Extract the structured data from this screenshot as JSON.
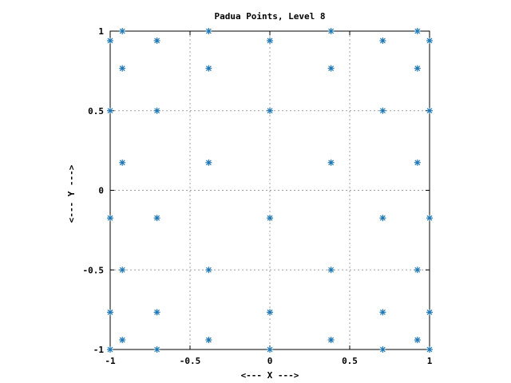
{
  "chart_data": {
    "type": "scatter",
    "title": "Padua Points, Level 8",
    "xlabel": "<--- X --->",
    "ylabel": "<--- Y --->",
    "xlim": [
      -1,
      1
    ],
    "ylim": [
      -1,
      1
    ],
    "grid": true,
    "xticks": [
      -1,
      -0.5,
      0,
      0.5,
      1
    ],
    "yticks": [
      -1,
      -0.5,
      0,
      0.5,
      1
    ],
    "xtick_labels": [
      "-1",
      "-0.5",
      "0",
      "0.5",
      "1"
    ],
    "ytick_labels": [
      "-1",
      "-0.5",
      "0",
      "0.5",
      "1"
    ],
    "marker": "asterisk",
    "colors": {
      "points": "#1f77b4",
      "grid": "#a0a0a0",
      "axes": "#000000"
    },
    "series": [
      {
        "points": [
          [
            -1,
            -1
          ],
          [
            -1,
            -0.766
          ],
          [
            -1,
            -0.174
          ],
          [
            -1,
            0.5
          ],
          [
            -1,
            0.94
          ],
          [
            -0.924,
            -0.94
          ],
          [
            -0.924,
            -0.5
          ],
          [
            -0.924,
            0.174
          ],
          [
            -0.924,
            0.766
          ],
          [
            -0.924,
            1
          ],
          [
            -0.707,
            -1
          ],
          [
            -0.707,
            -0.766
          ],
          [
            -0.707,
            -0.174
          ],
          [
            -0.707,
            0.5
          ],
          [
            -0.707,
            0.94
          ],
          [
            -0.383,
            -0.94
          ],
          [
            -0.383,
            -0.5
          ],
          [
            -0.383,
            0.174
          ],
          [
            -0.383,
            0.766
          ],
          [
            -0.383,
            1
          ],
          [
            0,
            -1
          ],
          [
            0,
            -0.766
          ],
          [
            0,
            -0.174
          ],
          [
            0,
            0.5
          ],
          [
            0,
            0.94
          ],
          [
            0.383,
            -0.94
          ],
          [
            0.383,
            -0.5
          ],
          [
            0.383,
            0.174
          ],
          [
            0.383,
            0.766
          ],
          [
            0.383,
            1
          ],
          [
            0.707,
            -1
          ],
          [
            0.707,
            -0.766
          ],
          [
            0.707,
            -0.174
          ],
          [
            0.707,
            0.5
          ],
          [
            0.707,
            0.94
          ],
          [
            0.924,
            -0.94
          ],
          [
            0.924,
            -0.5
          ],
          [
            0.924,
            0.174
          ],
          [
            0.924,
            0.766
          ],
          [
            0.924,
            1
          ],
          [
            1,
            -1
          ],
          [
            1,
            -0.766
          ],
          [
            1,
            -0.174
          ],
          [
            1,
            0.5
          ],
          [
            1,
            0.94
          ]
        ]
      }
    ]
  }
}
